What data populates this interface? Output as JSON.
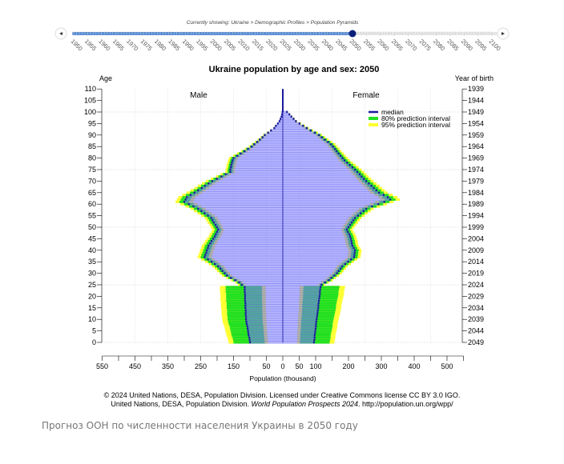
{
  "slider": {
    "breadcrumb": "Currently showing: Ukraine > Demographic Profiles > Population Pyramids",
    "years": [
      "1950",
      "1955",
      "1960",
      "1965",
      "1970",
      "1975",
      "1980",
      "1985",
      "1990",
      "1995",
      "2000",
      "2005",
      "2010",
      "2015",
      "2020",
      "2025",
      "2030",
      "2035",
      "2040",
      "2045",
      "2050",
      "2055",
      "2060",
      "2065",
      "2070",
      "2075",
      "2080",
      "2085",
      "2090",
      "2095",
      "2100"
    ],
    "selected_year": "2050",
    "prev_icon": "chevron-left-icon",
    "next_icon": "chevron-right-icon",
    "colors": {
      "track": "#5b8fd6",
      "thumb": "#0a1f7a",
      "rest": "#e6e6e6"
    }
  },
  "chart_data": {
    "type": "bar",
    "subtype": "population-pyramid",
    "title": "Ukraine population by age and sex: 2050",
    "ylabel_left": "Age",
    "ylabel_right": "Year of birth",
    "xlabel": "Population (thousand)",
    "left_label": "Male",
    "right_label": "Female",
    "age_ticks": [
      "110",
      "105",
      "100",
      "95",
      "90",
      "85",
      "80",
      "75",
      "70",
      "65",
      "60",
      "55",
      "50",
      "45",
      "40",
      "35",
      "30",
      "25",
      "20",
      "15",
      "10",
      "5",
      "0"
    ],
    "birth_year_ticks": [
      "1939",
      "1944",
      "1949",
      "1954",
      "1959",
      "1964",
      "1969",
      "1974",
      "1979",
      "1984",
      "1989",
      "1994",
      "1999",
      "2004",
      "2009",
      "2014",
      "2019",
      "2024",
      "2029",
      "2034",
      "2039",
      "2044",
      "2049"
    ],
    "x_tick_labels_left": [
      "550",
      "450",
      "350",
      "250",
      "150",
      "50"
    ],
    "x_tick_labels_right": [
      "0",
      "50",
      "100",
      "200",
      "300",
      "400",
      "500"
    ],
    "xlim": [
      -550,
      550
    ],
    "ylim": [
      0,
      110
    ],
    "legend": [
      "median",
      "80% prediction interval",
      "95% prediction interval"
    ],
    "legend_placement": "top-right",
    "colors": {
      "bars": "#9999ff",
      "median": "#1a1aa0",
      "pi80": "#22e022",
      "pi95": "#ffff33",
      "overlap": "#1a9a6a"
    },
    "interval_rel": {
      "born_after_2025_pi80": [
        0.55,
        1.5
      ],
      "born_after_2025_pi95": [
        0.45,
        1.65
      ],
      "born_before_2025_pi80": [
        0.95,
        1.05
      ],
      "born_before_2025_pi95": [
        0.91,
        1.09
      ]
    },
    "ages": "0-100",
    "male": [
      100,
      101,
      102,
      104,
      105,
      106,
      107,
      108,
      110,
      111,
      112,
      112,
      113,
      113,
      113,
      114,
      114,
      114,
      115,
      115,
      115,
      115,
      116,
      116,
      116,
      125,
      133,
      145,
      158,
      170,
      177,
      184,
      190,
      197,
      207,
      217,
      228,
      238,
      236,
      233,
      231,
      228,
      226,
      221,
      217,
      212,
      207,
      204,
      200,
      197,
      201,
      205,
      210,
      214,
      218,
      228,
      238,
      248,
      258,
      272,
      286,
      300,
      296,
      292,
      281,
      269,
      258,
      247,
      237,
      226,
      215,
      201,
      187,
      174,
      160,
      160,
      158,
      157,
      155,
      153,
      150,
      139,
      128,
      117,
      106,
      95,
      87,
      78,
      70,
      62,
      55,
      45,
      36,
      26,
      21,
      15,
      10,
      7,
      4,
      2,
      1
    ],
    "female": [
      95,
      96,
      97,
      97,
      98,
      99,
      100,
      101,
      101,
      102,
      103,
      104,
      105,
      106,
      107,
      108,
      108,
      109,
      110,
      111,
      112,
      113,
      113,
      114,
      115,
      118,
      129,
      140,
      148,
      157,
      165,
      170,
      176,
      181,
      190,
      199,
      208,
      217,
      218,
      219,
      220,
      216,
      212,
      210,
      209,
      207,
      205,
      202,
      198,
      195,
      200,
      205,
      210,
      215,
      220,
      229,
      237,
      246,
      254,
      272,
      291,
      309,
      327,
      320,
      307,
      293,
      285,
      277,
      270,
      262,
      254,
      247,
      240,
      234,
      227,
      220,
      212,
      204,
      196,
      188,
      182,
      176,
      170,
      164,
      159,
      153,
      147,
      138,
      128,
      119,
      110,
      98,
      85,
      73,
      62,
      51,
      40,
      33,
      26,
      20,
      13
    ]
  },
  "credits": {
    "line1": "© 2024 United Nations, DESA, Population Division. Licensed under Creative Commons license CC BY 3.0 IGO.",
    "line2_pre": "United Nations, DESA, Population Division. ",
    "line2_italic": "World Population Prospects 2024",
    "line2_post": ". http://population.un.org/wpp/"
  },
  "caption": "Прогноз ООН по численности населения Украины в 2050 году"
}
